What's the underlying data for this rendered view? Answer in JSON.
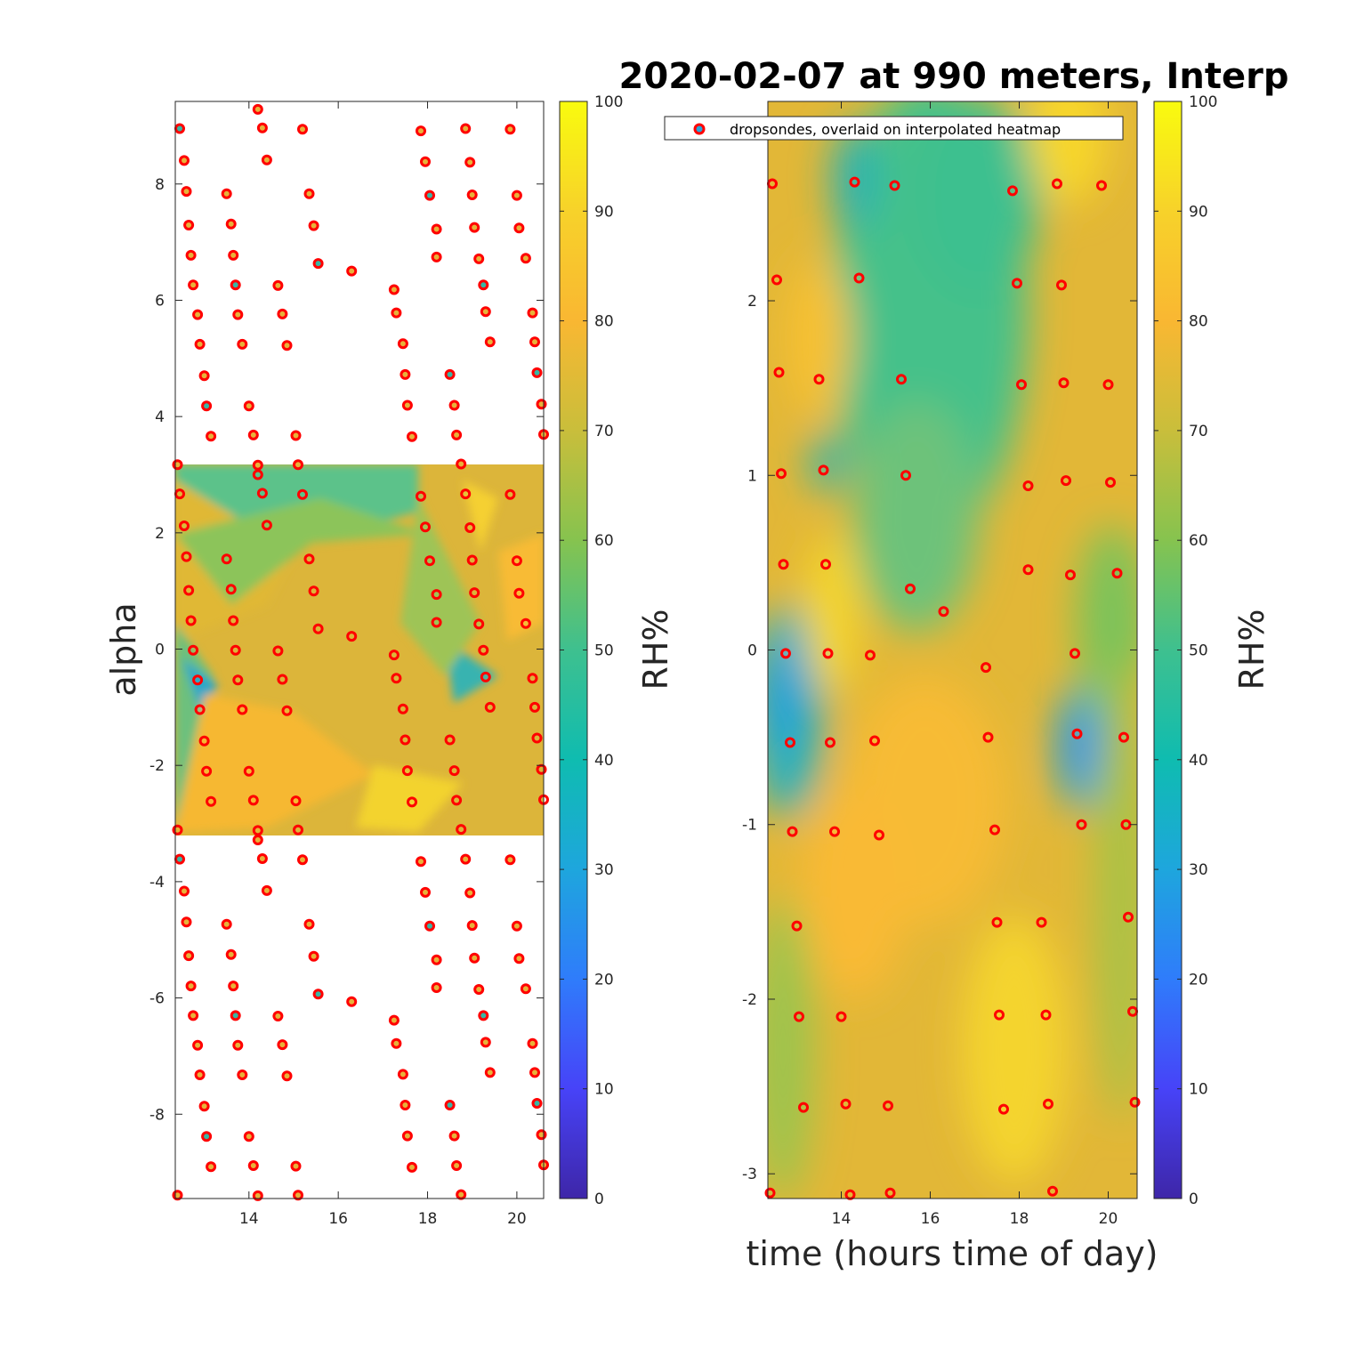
{
  "title": "2020-02-07 at 990 meters, Interp",
  "colorbar_ticks": [
    "0",
    "10",
    "20",
    "30",
    "40",
    "50",
    "60",
    "70",
    "80",
    "90",
    "100"
  ],
  "colors": {
    "parula": [
      "#3e26a8",
      "#4743f8",
      "#2f7cfb",
      "#1ea6dd",
      "#0fbcb0",
      "#3ec08f",
      "#86c34f",
      "#c9be3b",
      "#f9b732",
      "#f7d22a",
      "#f9fb0e"
    ],
    "marker_edge": "#ff0000"
  },
  "chart_data": [
    {
      "type": "heatmap",
      "panel": "left",
      "xlabel": "",
      "ylabel": "alpha",
      "colorbar_label": "RH%",
      "xlim": [
        12.35,
        20.6
      ],
      "ylim": [
        -9.45,
        9.42
      ],
      "xticks": [
        "14",
        "16",
        "18",
        "20"
      ],
      "yticks": [
        "-8",
        "-6",
        "-4",
        "-2",
        "0",
        "2",
        "4",
        "6",
        "8"
      ],
      "heatmap_alpha_range": [
        -3.1416,
        3.1416
      ],
      "marker_columns_time": [
        12.4,
        12.6,
        12.8,
        13.0,
        13.2,
        13.6,
        13.8,
        14.1,
        14.3,
        14.8,
        15.2,
        15.4,
        16.3,
        17.3,
        17.5,
        17.7,
        18.0,
        18.2,
        18.6,
        18.8,
        19.1,
        19.3,
        19.9,
        20.1,
        20.4,
        20.6
      ],
      "markers": "dropsonde locations replicated in alpha with period 2π",
      "colormap": "parula",
      "clim": [
        0,
        100
      ]
    },
    {
      "type": "heatmap",
      "panel": "right",
      "xlabel": "time (hours time of day)",
      "ylabel": "",
      "colorbar_label": "RH%",
      "xlim": [
        12.35,
        20.65
      ],
      "ylim": [
        -3.1416,
        3.1416
      ],
      "xticks": [
        "14",
        "16",
        "18",
        "20"
      ],
      "yticks": [
        "-3",
        "-2",
        "-1",
        "0",
        "1",
        "2"
      ],
      "colormap": "parula",
      "clim": [
        0,
        100
      ],
      "legend": {
        "label": "dropsondes, overlaid on interpolated heatmap",
        "location": "top-left"
      },
      "dropsondes": [
        [
          12.45,
          2.67
        ],
        [
          12.55,
          2.12
        ],
        [
          12.6,
          1.59
        ],
        [
          12.65,
          1.01
        ],
        [
          12.7,
          0.49
        ],
        [
          12.75,
          -0.02
        ],
        [
          12.85,
          -0.53
        ],
        [
          12.9,
          -1.04
        ],
        [
          13.0,
          -1.58
        ],
        [
          13.05,
          -2.1
        ],
        [
          13.15,
          -2.62
        ],
        [
          12.4,
          -3.11
        ],
        [
          14.2,
          3.0
        ],
        [
          14.3,
          2.68
        ],
        [
          14.4,
          2.13
        ],
        [
          13.5,
          1.55
        ],
        [
          13.6,
          1.03
        ],
        [
          13.65,
          0.49
        ],
        [
          13.7,
          -0.02
        ],
        [
          13.75,
          -0.53
        ],
        [
          13.85,
          -1.04
        ],
        [
          14.0,
          -2.1
        ],
        [
          14.1,
          -2.6
        ],
        [
          14.2,
          -3.12
        ],
        [
          15.2,
          2.66
        ],
        [
          15.35,
          1.55
        ],
        [
          15.45,
          1.0
        ],
        [
          15.55,
          0.35
        ],
        [
          14.65,
          -0.03
        ],
        [
          14.75,
          -0.52
        ],
        [
          14.85,
          -1.06
        ],
        [
          15.05,
          -2.61
        ],
        [
          15.1,
          -3.11
        ],
        [
          16.3,
          0.22
        ],
        [
          17.85,
          2.63
        ],
        [
          17.95,
          2.1
        ],
        [
          18.05,
          1.52
        ],
        [
          18.2,
          0.94
        ],
        [
          18.2,
          0.46
        ],
        [
          17.25,
          -0.1
        ],
        [
          17.3,
          -0.5
        ],
        [
          17.45,
          -1.03
        ],
        [
          17.5,
          -1.56
        ],
        [
          17.55,
          -2.09
        ],
        [
          17.65,
          -2.63
        ],
        [
          18.5,
          -1.56
        ],
        [
          18.6,
          -2.09
        ],
        [
          18.65,
          -2.6
        ],
        [
          18.75,
          -3.1
        ],
        [
          18.85,
          2.67
        ],
        [
          18.95,
          2.09
        ],
        [
          19.0,
          1.53
        ],
        [
          19.05,
          0.97
        ],
        [
          19.15,
          0.43
        ],
        [
          19.25,
          -0.02
        ],
        [
          19.3,
          -0.48
        ],
        [
          19.4,
          -1.0
        ],
        [
          19.85,
          2.66
        ],
        [
          20.0,
          1.52
        ],
        [
          20.05,
          0.96
        ],
        [
          20.2,
          0.44
        ],
        [
          20.35,
          -0.5
        ],
        [
          20.4,
          -1.0
        ],
        [
          20.45,
          -1.53
        ],
        [
          20.55,
          -2.07
        ],
        [
          20.6,
          -2.59
        ]
      ]
    }
  ]
}
